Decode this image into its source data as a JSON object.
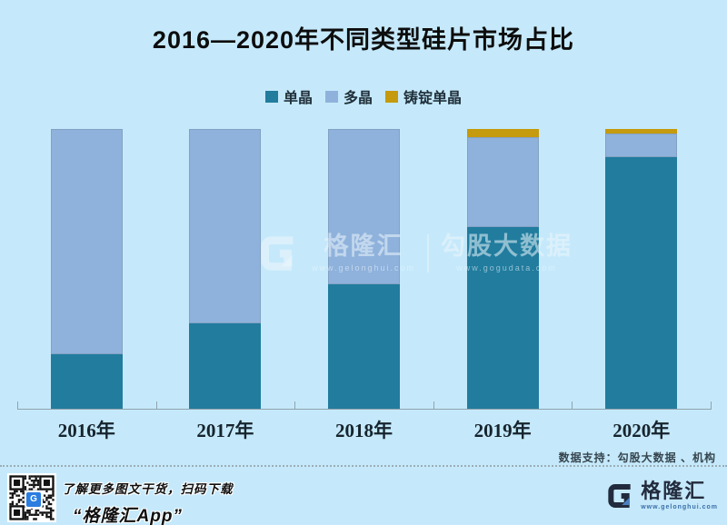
{
  "chart_data": {
    "type": "bar",
    "stacked": true,
    "title": "2016—2020年不同类型硅片市场占比",
    "categories": [
      "2016年",
      "2017年",
      "2018年",
      "2019年",
      "2020年"
    ],
    "series": [
      {
        "name": "单晶",
        "color": "#217c9e",
        "values": [
          19.5,
          30.5,
          44.5,
          65,
          90
        ]
      },
      {
        "name": "多晶",
        "color": "#8fb2dc",
        "values": [
          80.5,
          69.5,
          55.5,
          32,
          8.5
        ]
      },
      {
        "name": "铸锭单晶",
        "color": "#c59a0c",
        "values": [
          0,
          0,
          0,
          3,
          1.5
        ]
      }
    ],
    "ylim": [
      0,
      100
    ],
    "unit": "percent",
    "grid": false,
    "legend_position": "top"
  },
  "watermark": {
    "brand": "格隆汇",
    "brand_url": "www.gelonghui.com",
    "partner": "勾股大数据",
    "partner_url": "www.gogudata.com"
  },
  "footer": {
    "source_note": "数据支持：勾股大数据 、机构"
  },
  "bottom_bar": {
    "promo_line1": "了解更多图文干货，扫码下载",
    "promo_line2": "“格隆汇App”",
    "logo_text": "格隆汇",
    "logo_url": "www.gelonghui.com"
  },
  "colors": {
    "background": "#c5e9fb",
    "mono": "#217c9e",
    "multi": "#8fb2dc",
    "cast_mono": "#c59a0c",
    "logo_navy": "#222b3d",
    "axis": "#8fa3ad"
  }
}
